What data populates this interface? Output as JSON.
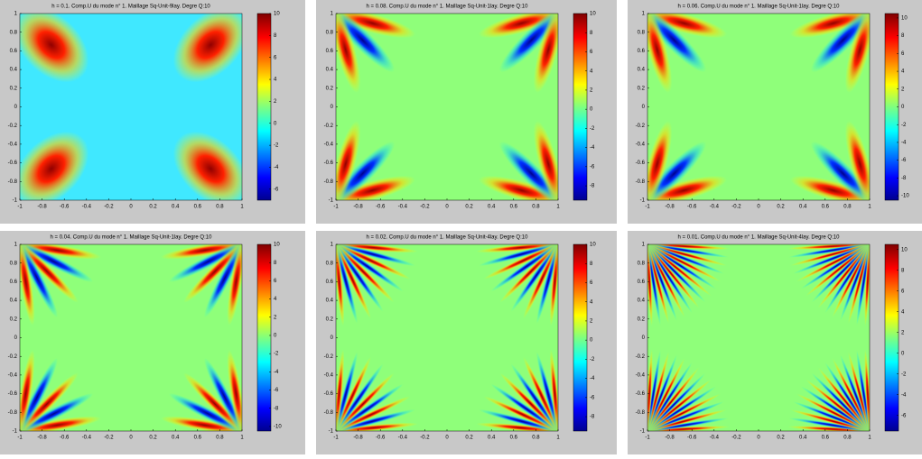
{
  "chart_data": [
    {
      "type": "heatmap",
      "title": "h = 0.1. Comp.U du mode n° 1. Maillage Sq-Unit-9lay. Degre Q:10",
      "colormap": "jet",
      "xlim": [
        -1,
        1
      ],
      "ylim": [
        -1,
        1
      ],
      "xticks": [
        -1,
        -0.8,
        -0.6,
        -0.4,
        -0.2,
        0,
        0.2,
        0.4,
        0.6,
        0.8,
        1
      ],
      "yticks": [
        -1,
        -0.8,
        -0.6,
        -0.4,
        -0.2,
        0,
        0.2,
        0.4,
        0.6,
        0.8,
        1
      ],
      "clim": [
        -7,
        10
      ],
      "cticks": [
        -6,
        -4,
        -2,
        0,
        2,
        4,
        6,
        8,
        10
      ]
    },
    {
      "type": "heatmap",
      "title": "h = 0.08. Comp.U du mode n° 1. Maillage Sq-Unit-1lay. Degre Q:10",
      "colormap": "jet",
      "xlim": [
        -1,
        1
      ],
      "ylim": [
        -1,
        1
      ],
      "xticks": [
        -1,
        -0.8,
        -0.6,
        -0.4,
        -0.2,
        0,
        0.2,
        0.4,
        0.6,
        0.8,
        1
      ],
      "yticks": [
        -1,
        -0.8,
        -0.6,
        -0.4,
        -0.2,
        0,
        0.2,
        0.4,
        0.6,
        0.8,
        1
      ],
      "clim": [
        -9.5,
        10
      ],
      "cticks": [
        -8,
        -6,
        -4,
        -2,
        0,
        2,
        4,
        6,
        8,
        10
      ]
    },
    {
      "type": "heatmap",
      "title": "h = 0.06. Comp.U du mode n° 1. Maillage Sq-Unit-1lay. Degre Q:10",
      "colormap": "jet",
      "xlim": [
        -1,
        1
      ],
      "ylim": [
        -1,
        1
      ],
      "xticks": [
        -1,
        -0.8,
        -0.6,
        -0.4,
        -0.2,
        0,
        0.2,
        0.4,
        0.6,
        0.8,
        1
      ],
      "yticks": [
        -1,
        -0.8,
        -0.6,
        -0.4,
        -0.2,
        0,
        0.2,
        0.4,
        0.6,
        0.8,
        1
      ],
      "clim": [
        -10.5,
        10.5
      ],
      "cticks": [
        -10,
        -8,
        -6,
        -4,
        -2,
        0,
        2,
        4,
        6,
        8,
        10
      ]
    },
    {
      "type": "heatmap",
      "title": "h = 0.04. Comp.U du mode n° 1. Maillage Sq-Unit-1lay. Degre Q:10",
      "colormap": "jet",
      "xlim": [
        -1,
        1
      ],
      "ylim": [
        -1,
        1
      ],
      "xticks": [
        -1,
        -0.8,
        -0.6,
        -0.4,
        -0.2,
        0,
        0.2,
        0.4,
        0.6,
        0.8,
        1
      ],
      "yticks": [
        -1,
        -0.8,
        -0.6,
        -0.4,
        -0.2,
        0,
        0.2,
        0.4,
        0.6,
        0.8,
        1
      ],
      "clim": [
        -10.5,
        10
      ],
      "cticks": [
        -10,
        -8,
        -6,
        -4,
        -2,
        0,
        2,
        4,
        6,
        8,
        10
      ]
    },
    {
      "type": "heatmap",
      "title": "h = 0.02. Comp.U du mode n° 1. Maillage Sq-Unit-4lay. Degre Q:10",
      "colormap": "jet",
      "xlim": [
        -1,
        1
      ],
      "ylim": [
        -1,
        1
      ],
      "xticks": [
        -1,
        -0.8,
        -0.6,
        -0.4,
        -0.2,
        0,
        0.2,
        0.4,
        0.6,
        0.8,
        1
      ],
      "yticks": [
        -1,
        -0.8,
        -0.6,
        -0.4,
        -0.2,
        0,
        0.2,
        0.4,
        0.6,
        0.8,
        1
      ],
      "clim": [
        -9.5,
        10
      ],
      "cticks": [
        -8,
        -6,
        -4,
        -2,
        0,
        2,
        4,
        6,
        8,
        10
      ]
    },
    {
      "type": "heatmap",
      "title": "h = 0.01. Comp.U du mode n° 1. Maillage Sq-Unit-4lay. Degre Q:10",
      "colormap": "jet",
      "xlim": [
        -1,
        1
      ],
      "ylim": [
        -1,
        1
      ],
      "xticks": [
        -1,
        -0.8,
        -0.6,
        -0.4,
        -0.2,
        0,
        0.2,
        0.4,
        0.6,
        0.8,
        1
      ],
      "yticks": [
        -1,
        -0.8,
        -0.6,
        -0.4,
        -0.2,
        0,
        0.2,
        0.4,
        0.6,
        0.8,
        1
      ],
      "clim": [
        -7.5,
        10.5
      ],
      "cticks": [
        -6,
        -4,
        -2,
        0,
        2,
        4,
        6,
        8,
        10
      ]
    }
  ]
}
